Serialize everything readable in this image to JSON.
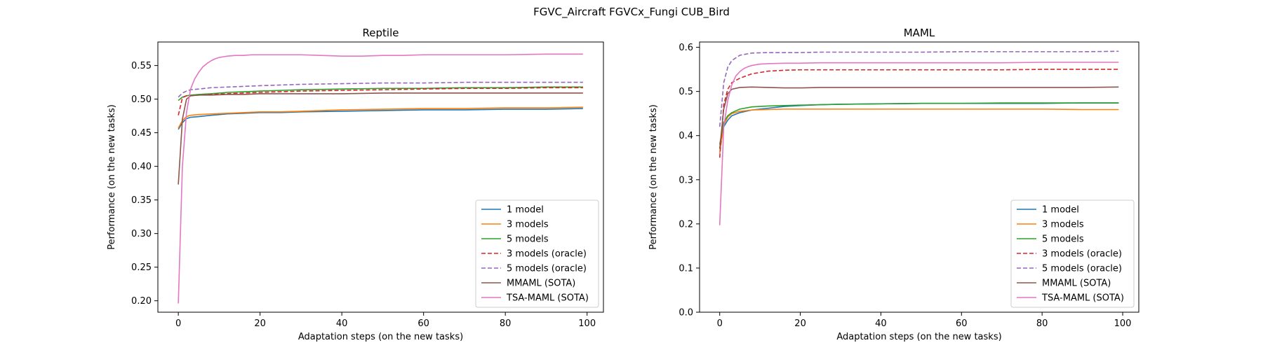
{
  "figure": {
    "suptitle": "FGVC_Aircraft FGVCx_Fungi CUB_Bird"
  },
  "chart_data": [
    {
      "type": "line",
      "title": "Reptile",
      "xlabel": "Adaptation steps (on the new tasks)",
      "ylabel": "Performance (on the new tasks)",
      "xlim": [
        -5,
        104
      ],
      "ylim": [
        0.183,
        0.585
      ],
      "xticks": [
        0,
        20,
        40,
        60,
        80,
        100
      ],
      "yticks": [
        0.2,
        0.25,
        0.3,
        0.35,
        0.4,
        0.45,
        0.5,
        0.55
      ],
      "ytick_decimals": 2,
      "legend_position": "lower right",
      "series": [
        {
          "name": "1 model",
          "color": "#1f77b4",
          "dash": "solid",
          "x": [
            0,
            1,
            2,
            3,
            5,
            8,
            12,
            16,
            20,
            25,
            30,
            40,
            50,
            60,
            70,
            80,
            90,
            99
          ],
          "y": [
            0.455,
            0.465,
            0.471,
            0.473,
            0.474,
            0.476,
            0.478,
            0.479,
            0.48,
            0.48,
            0.481,
            0.482,
            0.483,
            0.484,
            0.484,
            0.485,
            0.485,
            0.486
          ]
        },
        {
          "name": "3 models",
          "color": "#ff7f0e",
          "dash": "solid",
          "x": [
            0,
            1,
            2,
            3,
            5,
            8,
            12,
            16,
            20,
            25,
            30,
            40,
            50,
            60,
            70,
            80,
            90,
            99
          ],
          "y": [
            0.457,
            0.468,
            0.474,
            0.476,
            0.477,
            0.478,
            0.479,
            0.48,
            0.481,
            0.481,
            0.482,
            0.484,
            0.485,
            0.486,
            0.486,
            0.487,
            0.487,
            0.488
          ]
        },
        {
          "name": "5 models",
          "color": "#2ca02c",
          "dash": "solid",
          "x": [
            0,
            1,
            2,
            3,
            5,
            8,
            12,
            16,
            20,
            25,
            30,
            40,
            50,
            60,
            70,
            80,
            90,
            99
          ],
          "y": [
            0.498,
            0.503,
            0.505,
            0.506,
            0.507,
            0.508,
            0.51,
            0.511,
            0.512,
            0.513,
            0.514,
            0.515,
            0.516,
            0.516,
            0.517,
            0.517,
            0.518,
            0.518
          ]
        },
        {
          "name": "3 models (oracle)",
          "color": "#d62728",
          "dash": "dashed",
          "x": [
            0,
            1,
            2,
            3,
            5,
            8,
            12,
            16,
            20,
            25,
            30,
            40,
            50,
            60,
            70,
            80,
            90,
            99
          ],
          "y": [
            0.476,
            0.502,
            0.505,
            0.505,
            0.506,
            0.507,
            0.508,
            0.509,
            0.51,
            0.511,
            0.512,
            0.513,
            0.514,
            0.515,
            0.516,
            0.516,
            0.517,
            0.517
          ]
        },
        {
          "name": "5 models (oracle)",
          "color": "#9467bd",
          "dash": "dashed",
          "x": [
            0,
            1,
            2,
            3,
            5,
            8,
            12,
            16,
            20,
            25,
            30,
            40,
            50,
            60,
            70,
            80,
            90,
            99
          ],
          "y": [
            0.503,
            0.509,
            0.512,
            0.514,
            0.515,
            0.517,
            0.518,
            0.519,
            0.52,
            0.521,
            0.522,
            0.523,
            0.524,
            0.524,
            0.525,
            0.525,
            0.525,
            0.525
          ]
        },
        {
          "name": "MMAML (SOTA)",
          "color": "#8c564b",
          "dash": "solid",
          "x": [
            0,
            1,
            2,
            3,
            5,
            8,
            12,
            16,
            20,
            25,
            30,
            40,
            50,
            60,
            70,
            80,
            90,
            99
          ],
          "y": [
            0.373,
            0.47,
            0.5,
            0.505,
            0.506,
            0.506,
            0.507,
            0.507,
            0.508,
            0.508,
            0.508,
            0.508,
            0.509,
            0.509,
            0.509,
            0.509,
            0.509,
            0.509
          ]
        },
        {
          "name": "TSA-MAML (SOTA)",
          "color": "#e377c2",
          "dash": "solid",
          "x": [
            0,
            1,
            2,
            3,
            4,
            5,
            6,
            7,
            8,
            9,
            10,
            11,
            12,
            14,
            16,
            18,
            20,
            25,
            30,
            35,
            40,
            45,
            50,
            55,
            60,
            70,
            80,
            90,
            99
          ],
          "y": [
            0.196,
            0.4,
            0.48,
            0.515,
            0.53,
            0.54,
            0.548,
            0.553,
            0.557,
            0.56,
            0.562,
            0.563,
            0.564,
            0.565,
            0.565,
            0.566,
            0.566,
            0.566,
            0.566,
            0.565,
            0.564,
            0.564,
            0.565,
            0.565,
            0.566,
            0.566,
            0.566,
            0.567,
            0.567
          ]
        }
      ]
    },
    {
      "type": "line",
      "title": "MAML",
      "xlabel": "Adaptation steps (on the new tasks)",
      "ylabel": "Performance (on the new tasks)",
      "xlim": [
        -5,
        104
      ],
      "ylim": [
        0.0,
        0.612
      ],
      "xticks": [
        0,
        20,
        40,
        60,
        80,
        100
      ],
      "yticks": [
        0.0,
        0.1,
        0.2,
        0.3,
        0.4,
        0.5,
        0.6
      ],
      "ytick_decimals": 1,
      "legend_position": "lower right",
      "series": [
        {
          "name": "1 model",
          "color": "#1f77b4",
          "dash": "solid",
          "x": [
            0,
            1,
            2,
            3,
            5,
            8,
            12,
            16,
            20,
            25,
            30,
            40,
            50,
            60,
            70,
            80,
            90,
            99
          ],
          "y": [
            0.37,
            0.42,
            0.435,
            0.445,
            0.452,
            0.458,
            0.462,
            0.466,
            0.468,
            0.47,
            0.471,
            0.472,
            0.473,
            0.473,
            0.473,
            0.473,
            0.474,
            0.474
          ]
        },
        {
          "name": "3 models",
          "color": "#ff7f0e",
          "dash": "solid",
          "x": [
            0,
            1,
            2,
            3,
            5,
            8,
            12,
            16,
            20,
            25,
            30,
            40,
            50,
            60,
            70,
            80,
            90,
            99
          ],
          "y": [
            0.36,
            0.425,
            0.442,
            0.45,
            0.455,
            0.458,
            0.459,
            0.46,
            0.46,
            0.46,
            0.46,
            0.46,
            0.46,
            0.46,
            0.46,
            0.46,
            0.459,
            0.459
          ]
        },
        {
          "name": "5 models",
          "color": "#2ca02c",
          "dash": "solid",
          "x": [
            0,
            1,
            2,
            3,
            5,
            8,
            12,
            16,
            20,
            25,
            30,
            40,
            50,
            60,
            70,
            80,
            90,
            99
          ],
          "y": [
            0.38,
            0.43,
            0.445,
            0.452,
            0.46,
            0.465,
            0.467,
            0.468,
            0.469,
            0.47,
            0.471,
            0.472,
            0.473,
            0.473,
            0.474,
            0.474,
            0.474,
            0.474
          ]
        },
        {
          "name": "3 models (oracle)",
          "color": "#d62728",
          "dash": "dashed",
          "x": [
            0,
            1,
            2,
            3,
            5,
            8,
            12,
            16,
            20,
            25,
            30,
            40,
            50,
            60,
            70,
            80,
            90,
            99
          ],
          "y": [
            0.35,
            0.47,
            0.505,
            0.52,
            0.53,
            0.54,
            0.546,
            0.548,
            0.549,
            0.549,
            0.549,
            0.549,
            0.549,
            0.549,
            0.549,
            0.55,
            0.55,
            0.55
          ]
        },
        {
          "name": "5 models (oracle)",
          "color": "#9467bd",
          "dash": "dashed",
          "x": [
            0,
            1,
            2,
            3,
            5,
            8,
            12,
            16,
            20,
            25,
            30,
            40,
            50,
            60,
            70,
            80,
            90,
            99
          ],
          "y": [
            0.42,
            0.52,
            0.555,
            0.57,
            0.582,
            0.587,
            0.588,
            0.588,
            0.588,
            0.589,
            0.589,
            0.589,
            0.589,
            0.59,
            0.59,
            0.59,
            0.59,
            0.591
          ]
        },
        {
          "name": "MMAML (SOTA)",
          "color": "#8c564b",
          "dash": "solid",
          "x": [
            0,
            1,
            2,
            3,
            5,
            8,
            12,
            16,
            20,
            25,
            30,
            40,
            50,
            60,
            70,
            80,
            90,
            99
          ],
          "y": [
            0.37,
            0.46,
            0.495,
            0.505,
            0.509,
            0.51,
            0.509,
            0.508,
            0.508,
            0.509,
            0.509,
            0.509,
            0.509,
            0.509,
            0.509,
            0.509,
            0.509,
            0.51
          ]
        },
        {
          "name": "TSA-MAML (SOTA)",
          "color": "#e377c2",
          "dash": "solid",
          "x": [
            0,
            1,
            2,
            3,
            4,
            5,
            6,
            7,
            8,
            10,
            12,
            16,
            20,
            25,
            30,
            40,
            50,
            60,
            70,
            80,
            90,
            99
          ],
          "y": [
            0.197,
            0.42,
            0.48,
            0.515,
            0.535,
            0.545,
            0.552,
            0.556,
            0.559,
            0.562,
            0.563,
            0.564,
            0.564,
            0.565,
            0.565,
            0.565,
            0.565,
            0.565,
            0.565,
            0.566,
            0.566,
            0.566
          ]
        }
      ]
    }
  ]
}
